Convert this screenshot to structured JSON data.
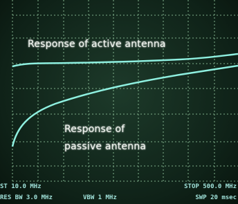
{
  "annotations": {
    "active": "Response of active antenna",
    "passive": "Response of passive antenna"
  },
  "readouts": {
    "start": "ST 10.0 MHz",
    "res_bw": "RES BW 3.0 MHz",
    "vbw": "VBW 1 MHz",
    "stop": "STOP 500.0 MHz",
    "sweep": "SWP 20 msec"
  }
}
